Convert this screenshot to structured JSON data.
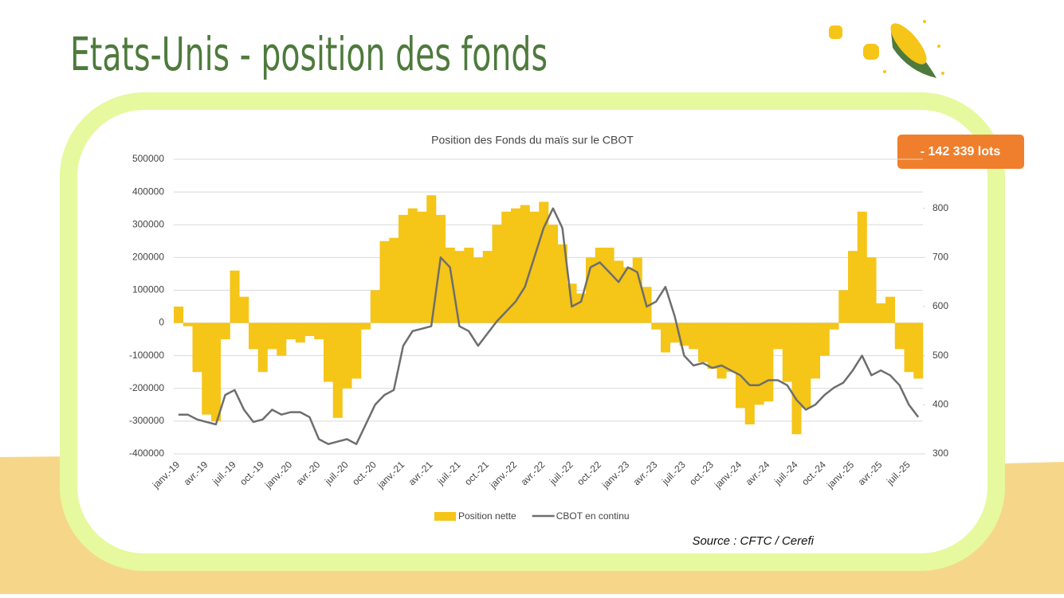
{
  "header": {
    "title": "Etats-Unis - position des fonds"
  },
  "badge": "- 142 339 lots",
  "source": "Source : CFTC / Cerefi",
  "chart_data": {
    "type": "combo",
    "title": "Position des Fonds du maïs sur le CBOT",
    "categories": [
      "janv.-19",
      null,
      null,
      "avr.-19",
      null,
      null,
      "juil.-19",
      null,
      null,
      "oct.-19",
      null,
      null,
      "janv.-20",
      null,
      null,
      "avr.-20",
      null,
      null,
      "juil.-20",
      null,
      null,
      "oct.-20",
      null,
      null,
      "janv.-21",
      null,
      null,
      "avr.-21",
      null,
      null,
      "juil.-21",
      null,
      null,
      "oct.-21",
      null,
      null,
      "janv.-22",
      null,
      null,
      "avr.-22",
      null,
      null,
      "juil.-22",
      null,
      null,
      "oct.-22",
      null,
      null,
      "janv.-23",
      null,
      null,
      "avr.-23",
      null,
      null,
      "juil.-23",
      null,
      null,
      "oct.-23",
      null,
      null,
      "janv.-24",
      null,
      null,
      "avr.-24",
      null,
      null,
      "juil.-24",
      null,
      null,
      "oct.-24",
      null,
      null,
      "janv.-25",
      null,
      null,
      "avr.-25",
      null,
      null,
      "juil.-25",
      null
    ],
    "series": [
      {
        "name": "Position nette",
        "type": "bar",
        "color": "#f5c518",
        "values": [
          50000,
          -10000,
          -150000,
          -280000,
          -300000,
          -50000,
          160000,
          80000,
          -80000,
          -150000,
          -80000,
          -100000,
          -50000,
          -60000,
          -40000,
          -50000,
          -180000,
          -290000,
          -200000,
          -170000,
          -20000,
          100000,
          250000,
          260000,
          330000,
          350000,
          340000,
          390000,
          330000,
          230000,
          220000,
          230000,
          200000,
          220000,
          300000,
          340000,
          350000,
          360000,
          340000,
          370000,
          300000,
          240000,
          120000,
          90000,
          200000,
          230000,
          230000,
          190000,
          170000,
          200000,
          110000,
          -20000,
          -90000,
          -60000,
          -70000,
          -80000,
          -120000,
          -140000,
          -170000,
          -150000,
          -260000,
          -310000,
          -250000,
          -240000,
          -80000,
          -180000,
          -340000,
          -260000,
          -170000,
          -100000,
          -20000,
          100000,
          220000,
          340000,
          200000,
          60000,
          80000,
          -80000,
          -150000,
          -170000
        ]
      },
      {
        "name": "CBOT en continu",
        "type": "line",
        "axis": "y2",
        "color": "#6e6e6e",
        "values": [
          380,
          380,
          370,
          365,
          360,
          420,
          430,
          390,
          365,
          370,
          390,
          380,
          385,
          385,
          375,
          330,
          320,
          325,
          330,
          320,
          360,
          400,
          420,
          430,
          520,
          550,
          555,
          560,
          700,
          680,
          560,
          550,
          520,
          545,
          570,
          590,
          610,
          640,
          700,
          760,
          800,
          760,
          600,
          610,
          680,
          690,
          670,
          650,
          680,
          670,
          600,
          610,
          640,
          580,
          500,
          480,
          485,
          475,
          480,
          470,
          460,
          440,
          440,
          450,
          450,
          440,
          410,
          390,
          400,
          420,
          435,
          445,
          470,
          500,
          460,
          470,
          460,
          440,
          400,
          375
        ]
      }
    ],
    "ylim": [
      -400000,
      500000
    ],
    "yticks": [
      -400000,
      -300000,
      -200000,
      -100000,
      0,
      100000,
      200000,
      300000,
      400000,
      500000
    ],
    "y2lim": [
      300,
      900
    ],
    "y2ticks": [
      300,
      400,
      500,
      600,
      700,
      800
    ],
    "grid": true
  }
}
